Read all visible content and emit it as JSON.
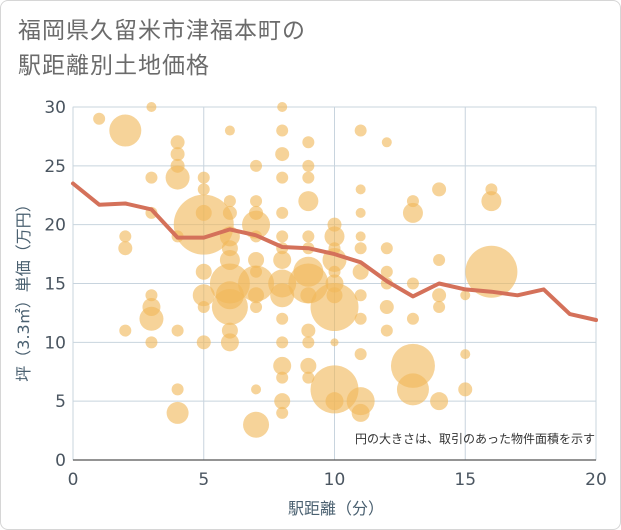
{
  "title_line1": "福岡県久留米市津福本町の",
  "title_line2": "駅距離別土地価格",
  "note": "円の大きさは、取引のあった物件面積を示す",
  "colors": {
    "bubble": "#f0b85a",
    "line": "#d4715a",
    "grid": "#c8d4de"
  },
  "chart_data": {
    "type": "scatter",
    "xlabel": "駅距離（分）",
    "ylabel": "坪（3.3㎡）単価（万円）",
    "xlim": [
      0,
      20
    ],
    "ylim": [
      0,
      30
    ],
    "xticks": [
      "0",
      "5",
      "10",
      "15",
      "20"
    ],
    "yticks": [
      "0",
      "5",
      "10",
      "15",
      "20",
      "25",
      "30"
    ],
    "bubbles": [
      {
        "x": 1,
        "y": 29,
        "s": 6
      },
      {
        "x": 2,
        "y": 28,
        "s": 16
      },
      {
        "x": 3,
        "y": 30,
        "s": 5
      },
      {
        "x": 2,
        "y": 19,
        "s": 6
      },
      {
        "x": 2,
        "y": 18,
        "s": 7
      },
      {
        "x": 2,
        "y": 11,
        "s": 6
      },
      {
        "x": 3,
        "y": 24,
        "s": 6
      },
      {
        "x": 3,
        "y": 21,
        "s": 6
      },
      {
        "x": 3,
        "y": 14,
        "s": 6
      },
      {
        "x": 3,
        "y": 13,
        "s": 9
      },
      {
        "x": 3,
        "y": 12,
        "s": 12
      },
      {
        "x": 3,
        "y": 10,
        "s": 6
      },
      {
        "x": 4,
        "y": 27,
        "s": 7
      },
      {
        "x": 4,
        "y": 26,
        "s": 7
      },
      {
        "x": 4,
        "y": 25,
        "s": 7
      },
      {
        "x": 4,
        "y": 24,
        "s": 12
      },
      {
        "x": 4,
        "y": 19,
        "s": 6
      },
      {
        "x": 4,
        "y": 11,
        "s": 6
      },
      {
        "x": 4,
        "y": 6,
        "s": 6
      },
      {
        "x": 4,
        "y": 4,
        "s": 11
      },
      {
        "x": 5,
        "y": 24,
        "s": 6
      },
      {
        "x": 5,
        "y": 23,
        "s": 6
      },
      {
        "x": 5,
        "y": 21,
        "s": 8
      },
      {
        "x": 5,
        "y": 20,
        "s": 30
      },
      {
        "x": 5,
        "y": 16,
        "s": 8
      },
      {
        "x": 5,
        "y": 14,
        "s": 11
      },
      {
        "x": 5,
        "y": 13,
        "s": 6
      },
      {
        "x": 5,
        "y": 10,
        "s": 7
      },
      {
        "x": 6,
        "y": 28,
        "s": 5
      },
      {
        "x": 6,
        "y": 22,
        "s": 6
      },
      {
        "x": 6,
        "y": 21,
        "s": 7
      },
      {
        "x": 6,
        "y": 19,
        "s": 10
      },
      {
        "x": 6,
        "y": 18,
        "s": 8
      },
      {
        "x": 6,
        "y": 17,
        "s": 10
      },
      {
        "x": 6,
        "y": 15,
        "s": 20
      },
      {
        "x": 6,
        "y": 14,
        "s": 14
      },
      {
        "x": 6,
        "y": 13,
        "s": 18
      },
      {
        "x": 6,
        "y": 11,
        "s": 8
      },
      {
        "x": 6,
        "y": 10,
        "s": 9
      },
      {
        "x": 7,
        "y": 25,
        "s": 6
      },
      {
        "x": 7,
        "y": 22,
        "s": 6
      },
      {
        "x": 7,
        "y": 21,
        "s": 7
      },
      {
        "x": 7,
        "y": 20,
        "s": 14
      },
      {
        "x": 7,
        "y": 19,
        "s": 6
      },
      {
        "x": 7,
        "y": 17,
        "s": 8
      },
      {
        "x": 7,
        "y": 16,
        "s": 6
      },
      {
        "x": 7,
        "y": 15,
        "s": 18
      },
      {
        "x": 7,
        "y": 14,
        "s": 8
      },
      {
        "x": 7,
        "y": 13,
        "s": 6
      },
      {
        "x": 7,
        "y": 6,
        "s": 5
      },
      {
        "x": 7,
        "y": 3,
        "s": 13
      },
      {
        "x": 8,
        "y": 30,
        "s": 5
      },
      {
        "x": 8,
        "y": 28,
        "s": 6
      },
      {
        "x": 8,
        "y": 26,
        "s": 7
      },
      {
        "x": 8,
        "y": 24,
        "s": 6
      },
      {
        "x": 8,
        "y": 21,
        "s": 6
      },
      {
        "x": 8,
        "y": 19,
        "s": 6
      },
      {
        "x": 8,
        "y": 18,
        "s": 6
      },
      {
        "x": 8,
        "y": 17,
        "s": 9
      },
      {
        "x": 8,
        "y": 15,
        "s": 14
      },
      {
        "x": 8,
        "y": 14,
        "s": 12
      },
      {
        "x": 8,
        "y": 12,
        "s": 6
      },
      {
        "x": 8,
        "y": 10,
        "s": 6
      },
      {
        "x": 8,
        "y": 8,
        "s": 9
      },
      {
        "x": 8,
        "y": 7,
        "s": 6
      },
      {
        "x": 8,
        "y": 5,
        "s": 8
      },
      {
        "x": 8,
        "y": 4,
        "s": 6
      },
      {
        "x": 9,
        "y": 27,
        "s": 6
      },
      {
        "x": 9,
        "y": 25,
        "s": 6
      },
      {
        "x": 9,
        "y": 24,
        "s": 6
      },
      {
        "x": 9,
        "y": 22,
        "s": 10
      },
      {
        "x": 9,
        "y": 19,
        "s": 6
      },
      {
        "x": 9,
        "y": 18,
        "s": 6
      },
      {
        "x": 9,
        "y": 16,
        "s": 15
      },
      {
        "x": 9,
        "y": 15,
        "s": 20
      },
      {
        "x": 9,
        "y": 14,
        "s": 8
      },
      {
        "x": 9,
        "y": 11,
        "s": 7
      },
      {
        "x": 9,
        "y": 10,
        "s": 6
      },
      {
        "x": 9,
        "y": 8,
        "s": 8
      },
      {
        "x": 9,
        "y": 7,
        "s": 6
      },
      {
        "x": 10,
        "y": 20,
        "s": 7
      },
      {
        "x": 10,
        "y": 19,
        "s": 10
      },
      {
        "x": 10,
        "y": 18,
        "s": 6
      },
      {
        "x": 10,
        "y": 17,
        "s": 12
      },
      {
        "x": 10,
        "y": 16,
        "s": 6
      },
      {
        "x": 10,
        "y": 15,
        "s": 9
      },
      {
        "x": 10,
        "y": 14,
        "s": 8
      },
      {
        "x": 10,
        "y": 13,
        "s": 24
      },
      {
        "x": 10,
        "y": 10,
        "s": 4
      },
      {
        "x": 10,
        "y": 6,
        "s": 24
      },
      {
        "x": 10,
        "y": 5,
        "s": 9
      },
      {
        "x": 11,
        "y": 28,
        "s": 6
      },
      {
        "x": 11,
        "y": 23,
        "s": 5
      },
      {
        "x": 11,
        "y": 21,
        "s": 5
      },
      {
        "x": 11,
        "y": 19,
        "s": 5
      },
      {
        "x": 11,
        "y": 18,
        "s": 6
      },
      {
        "x": 11,
        "y": 16,
        "s": 8
      },
      {
        "x": 11,
        "y": 14,
        "s": 6
      },
      {
        "x": 11,
        "y": 12,
        "s": 6
      },
      {
        "x": 11,
        "y": 9,
        "s": 6
      },
      {
        "x": 11,
        "y": 5,
        "s": 14
      },
      {
        "x": 11,
        "y": 4,
        "s": 9
      },
      {
        "x": 12,
        "y": 27,
        "s": 5
      },
      {
        "x": 12,
        "y": 18,
        "s": 6
      },
      {
        "x": 12,
        "y": 16,
        "s": 6
      },
      {
        "x": 12,
        "y": 15,
        "s": 6
      },
      {
        "x": 12,
        "y": 13,
        "s": 7
      },
      {
        "x": 12,
        "y": 11,
        "s": 6
      },
      {
        "x": 13,
        "y": 22,
        "s": 6
      },
      {
        "x": 13,
        "y": 21,
        "s": 10
      },
      {
        "x": 13,
        "y": 15,
        "s": 6
      },
      {
        "x": 13,
        "y": 12,
        "s": 6
      },
      {
        "x": 13,
        "y": 8,
        "s": 22
      },
      {
        "x": 13,
        "y": 6,
        "s": 16
      },
      {
        "x": 14,
        "y": 23,
        "s": 7
      },
      {
        "x": 14,
        "y": 17,
        "s": 6
      },
      {
        "x": 14,
        "y": 14,
        "s": 7
      },
      {
        "x": 14,
        "y": 13,
        "s": 6
      },
      {
        "x": 14,
        "y": 5,
        "s": 9
      },
      {
        "x": 15,
        "y": 14,
        "s": 5
      },
      {
        "x": 15,
        "y": 9,
        "s": 5
      },
      {
        "x": 15,
        "y": 6,
        "s": 7
      },
      {
        "x": 16,
        "y": 23,
        "s": 6
      },
      {
        "x": 16,
        "y": 22,
        "s": 10
      },
      {
        "x": 16,
        "y": 16,
        "s": 26
      }
    ],
    "line": {
      "x": [
        0,
        1,
        2,
        3,
        4,
        5,
        6,
        7,
        8,
        9,
        10,
        11,
        12,
        13,
        14,
        15,
        16,
        17,
        18,
        19,
        20
      ],
      "y": [
        23.5,
        21.7,
        21.8,
        21.3,
        18.9,
        18.9,
        19.6,
        19.1,
        18.1,
        18.0,
        17.5,
        16.8,
        15.2,
        13.9,
        15.0,
        14.5,
        14.3,
        14.0,
        14.5,
        12.4,
        11.9
      ]
    }
  }
}
